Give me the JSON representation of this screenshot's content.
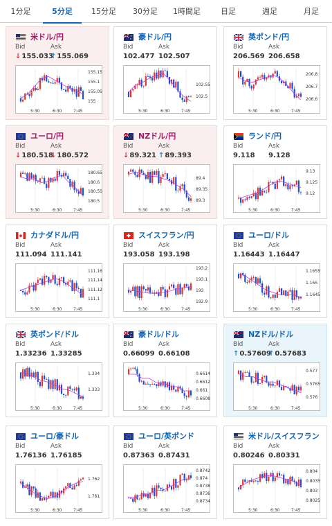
{
  "tabs": [
    {
      "label": "1分足",
      "active": false
    },
    {
      "label": "5分足",
      "active": true
    },
    {
      "label": "15分足",
      "active": false
    },
    {
      "label": "30分足",
      "active": false
    },
    {
      "label": "1時間足",
      "active": false
    },
    {
      "label": "日足",
      "active": false
    },
    {
      "label": "週足",
      "active": false
    },
    {
      "label": "月足",
      "active": false
    }
  ],
  "colors": {
    "accent": "#1566b0",
    "down_bg": "#fbeeee",
    "up_bg": "#eaf4fb",
    "candle_up": "#d83a3a",
    "candle_down": "#1e4fd0",
    "moving_avg": "#c03ad8"
  },
  "labels": {
    "bid": "Bid",
    "ask": "Ask"
  },
  "cards": [
    {
      "pair": "米ドル/円",
      "flag": "us-flag",
      "state": "down",
      "bid": "155.033",
      "ask": "155.069",
      "bid_dir": "down",
      "ask_dir": "up",
      "chart_data": {
        "type": "candlestick",
        "x_ticks": [
          "5:30",
          "6:30",
          "7:45"
        ],
        "y_ticks": [
          "155.15",
          "155.1",
          "155.05",
          "155"
        ],
        "ylim": [
          154.98,
          155.17
        ],
        "trend": [
          155.02,
          155.04,
          155.08,
          155.12,
          155.13,
          155.11,
          155.09,
          155.07,
          155.06,
          155.04
        ]
      }
    },
    {
      "pair": "豪ドル/円",
      "flag": "au-flag",
      "state": "none",
      "bid": "102.477",
      "ask": "102.507",
      "bid_dir": "",
      "ask_dir": "",
      "chart_data": {
        "type": "candlestick",
        "x_ticks": [
          "5:30",
          "6:30",
          "7:45"
        ],
        "y_ticks": [
          "102.55",
          "102.5"
        ],
        "ylim": [
          102.46,
          102.62
        ],
        "trend": [
          102.52,
          102.55,
          102.56,
          102.58,
          102.59,
          102.6,
          102.57,
          102.53,
          102.5,
          102.48
        ]
      }
    },
    {
      "pair": "英ポンド/円",
      "flag": "gb-flag",
      "state": "none",
      "bid": "206.569",
      "ask": "206.658",
      "bid_dir": "",
      "ask_dir": "",
      "chart_data": {
        "type": "candlestick",
        "x_ticks": [
          "5:30",
          "6:30",
          "7:45"
        ],
        "y_ticks": [
          "206.8",
          "206.7",
          "206.6"
        ],
        "ylim": [
          206.55,
          206.85
        ],
        "trend": [
          206.78,
          206.75,
          206.74,
          206.76,
          206.78,
          206.8,
          206.77,
          206.72,
          206.65,
          206.6
        ]
      }
    },
    {
      "pair": "ユーロ/円",
      "flag": "eu-flag",
      "state": "down",
      "bid": "180.518",
      "ask": "180.572",
      "bid_dir": "down",
      "ask_dir": "down",
      "chart_data": {
        "type": "candlestick",
        "x_ticks": [
          "5:30",
          "6:30",
          "7:45"
        ],
        "y_ticks": [
          "180.65",
          "180.6",
          "180.55",
          "180.5"
        ],
        "ylim": [
          180.48,
          180.68
        ],
        "trend": [
          180.63,
          180.62,
          180.62,
          180.6,
          180.61,
          180.63,
          180.64,
          180.6,
          180.57,
          180.53
        ]
      }
    },
    {
      "pair": "NZドル/円",
      "flag": "nz-flag",
      "state": "down",
      "bid": "89.321",
      "ask": "89.393",
      "bid_dir": "down",
      "ask_dir": "up",
      "chart_data": {
        "type": "candlestick",
        "x_ticks": [
          "5:30",
          "6:30",
          "7:45"
        ],
        "y_ticks": [
          "89.4",
          "89.35",
          "89.3"
        ],
        "ylim": [
          89.28,
          89.45
        ],
        "trend": [
          89.42,
          89.43,
          89.42,
          89.41,
          89.41,
          89.4,
          89.39,
          89.37,
          89.35,
          89.32
        ]
      }
    },
    {
      "pair": "ランド/円",
      "flag": "za-flag",
      "state": "none",
      "bid": "9.118",
      "ask": "9.128",
      "bid_dir": "",
      "ask_dir": "",
      "chart_data": {
        "type": "candlestick",
        "x_ticks": [
          "5:30",
          "6:30",
          "7:45"
        ],
        "y_ticks": [
          "9.13",
          "9.125",
          "9.12"
        ],
        "ylim": [
          9.115,
          9.132
        ],
        "trend": [
          9.118,
          9.119,
          9.12,
          9.121,
          9.123,
          9.125,
          9.126,
          9.125,
          9.124,
          9.123
        ]
      }
    },
    {
      "pair": "カナダドル/円",
      "flag": "ca-flag",
      "state": "none",
      "bid": "111.094",
      "ask": "111.141",
      "bid_dir": "",
      "ask_dir": "",
      "chart_data": {
        "type": "candlestick",
        "x_ticks": [
          "5:30",
          "6:30",
          "7:45"
        ],
        "y_ticks": [
          "111.16",
          "111.14",
          "111.12",
          "111.1"
        ],
        "ylim": [
          111.09,
          111.17
        ],
        "trend": [
          111.12,
          111.125,
          111.13,
          111.135,
          111.14,
          111.145,
          111.14,
          111.13,
          111.12,
          111.11
        ]
      }
    },
    {
      "pair": "スイスフラン/円",
      "flag": "ch-flag",
      "state": "none",
      "bid": "193.058",
      "ask": "193.198",
      "bid_dir": "",
      "ask_dir": "",
      "chart_data": {
        "type": "candlestick",
        "x_ticks": [
          "5:30",
          "6:30",
          "7:45"
        ],
        "y_ticks": [
          "193.2",
          "193.1",
          "193",
          "192.9"
        ],
        "ylim": [
          192.88,
          193.22
        ],
        "trend": [
          193.01,
          193.0,
          192.99,
          192.98,
          192.98,
          192.99,
          193.0,
          193.02,
          193.03,
          193.04
        ]
      }
    },
    {
      "pair": "ユーロ/ドル",
      "flag": "eu-flag",
      "state": "none",
      "bid": "1.16443",
      "ask": "1.16447",
      "bid_dir": "",
      "ask_dir": "",
      "chart_data": {
        "type": "candlestick",
        "x_ticks": [
          "5:30",
          "6:30",
          "7:45"
        ],
        "y_ticks": [
          "1.1655",
          "1.165",
          "1.1645"
        ],
        "ylim": [
          1.1641,
          1.1657
        ],
        "trend": [
          1.1654,
          1.1653,
          1.1651,
          1.1649,
          1.1647,
          1.1646,
          1.1645,
          1.1645,
          1.1645,
          1.1644
        ]
      }
    },
    {
      "pair": "英ポンド/ドル",
      "flag": "gb-flag",
      "state": "none",
      "bid": "1.33236",
      "ask": "1.33285",
      "bid_dir": "",
      "ask_dir": "",
      "chart_data": {
        "type": "candlestick",
        "x_ticks": [
          "5:30",
          "6:30",
          "7:45"
        ],
        "y_ticks": [
          "1.334",
          "1.333"
        ],
        "ylim": [
          1.3322,
          1.3345
        ],
        "trend": [
          1.3341,
          1.334,
          1.3338,
          1.3336,
          1.3335,
          1.3333,
          1.3331,
          1.333,
          1.3328,
          1.3326
        ]
      }
    },
    {
      "pair": "豪ドル/ドル",
      "flag": "au-flag",
      "state": "none",
      "bid": "0.66099",
      "ask": "0.66108",
      "bid_dir": "",
      "ask_dir": "",
      "chart_data": {
        "type": "candlestick",
        "x_ticks": [
          "5:30",
          "6:30",
          "7:45"
        ],
        "y_ticks": [
          "0.6614",
          "0.6612",
          "0.661",
          "0.6608"
        ],
        "ylim": [
          0.6607,
          0.6616
        ],
        "trend": [
          0.6614,
          0.6614,
          0.6613,
          0.6613,
          0.6612,
          0.6612,
          0.6611,
          0.6611,
          0.661,
          0.661
        ]
      }
    },
    {
      "pair": "NZドル/ドル",
      "flag": "nz-flag",
      "state": "up",
      "bid": "0.57609",
      "ask": "0.57683",
      "bid_dir": "up",
      "ask_dir": "up",
      "chart_data": {
        "type": "candlestick",
        "x_ticks": [
          "5:30",
          "6:30",
          "7:45"
        ],
        "y_ticks": [
          "0.577",
          "0.5765",
          "0.576"
        ],
        "ylim": [
          0.5758,
          0.5772
        ],
        "trend": [
          0.5769,
          0.5768,
          0.5768,
          0.5767,
          0.5766,
          0.5766,
          0.5765,
          0.5764,
          0.5763,
          0.5762
        ]
      }
    },
    {
      "pair": "ユーロ/豪ドル",
      "flag": "eu-flag",
      "state": "none",
      "bid": "1.76136",
      "ask": "1.76185",
      "bid_dir": "",
      "ask_dir": "",
      "chart_data": {
        "type": "candlestick",
        "x_ticks": [
          "5:30",
          "6:30",
          "7:45"
        ],
        "y_ticks": [
          "1.762",
          "1.761"
        ],
        "ylim": [
          1.7605,
          1.7627
        ],
        "trend": [
          1.7618,
          1.7615,
          1.7612,
          1.761,
          1.7609,
          1.761,
          1.7613,
          1.7616,
          1.7618,
          1.7619
        ]
      }
    },
    {
      "pair": "ユーロ/英ポンド",
      "flag": "eu-flag",
      "state": "none",
      "bid": "0.87363",
      "ask": "0.87431",
      "bid_dir": "",
      "ask_dir": "",
      "chart_data": {
        "type": "candlestick",
        "x_ticks": [
          "5:30",
          "6:30",
          "7:45"
        ],
        "y_ticks": [
          "0.8742",
          "0.874",
          "0.8738",
          "0.8736",
          "0.8734"
        ],
        "ylim": [
          0.8733,
          0.8743
        ],
        "trend": [
          0.8735,
          0.8735,
          0.8736,
          0.8736,
          0.8737,
          0.8737,
          0.8738,
          0.8739,
          0.874,
          0.874
        ]
      }
    },
    {
      "pair": "米ドル/スイスフラン",
      "flag": "us-flag",
      "state": "none",
      "bid": "0.80246",
      "ask": "0.80331",
      "bid_dir": "",
      "ask_dir": "",
      "chart_data": {
        "type": "candlestick",
        "x_ticks": [
          "5:30",
          "6:30",
          "7:45"
        ],
        "y_ticks": [
          "0.804",
          "0.8035",
          "0.803",
          "0.8025"
        ],
        "ylim": [
          0.8023,
          0.8042
        ],
        "trend": [
          0.8032,
          0.8034,
          0.8036,
          0.8037,
          0.8038,
          0.8038,
          0.8037,
          0.8036,
          0.8035,
          0.8033
        ]
      }
    }
  ]
}
